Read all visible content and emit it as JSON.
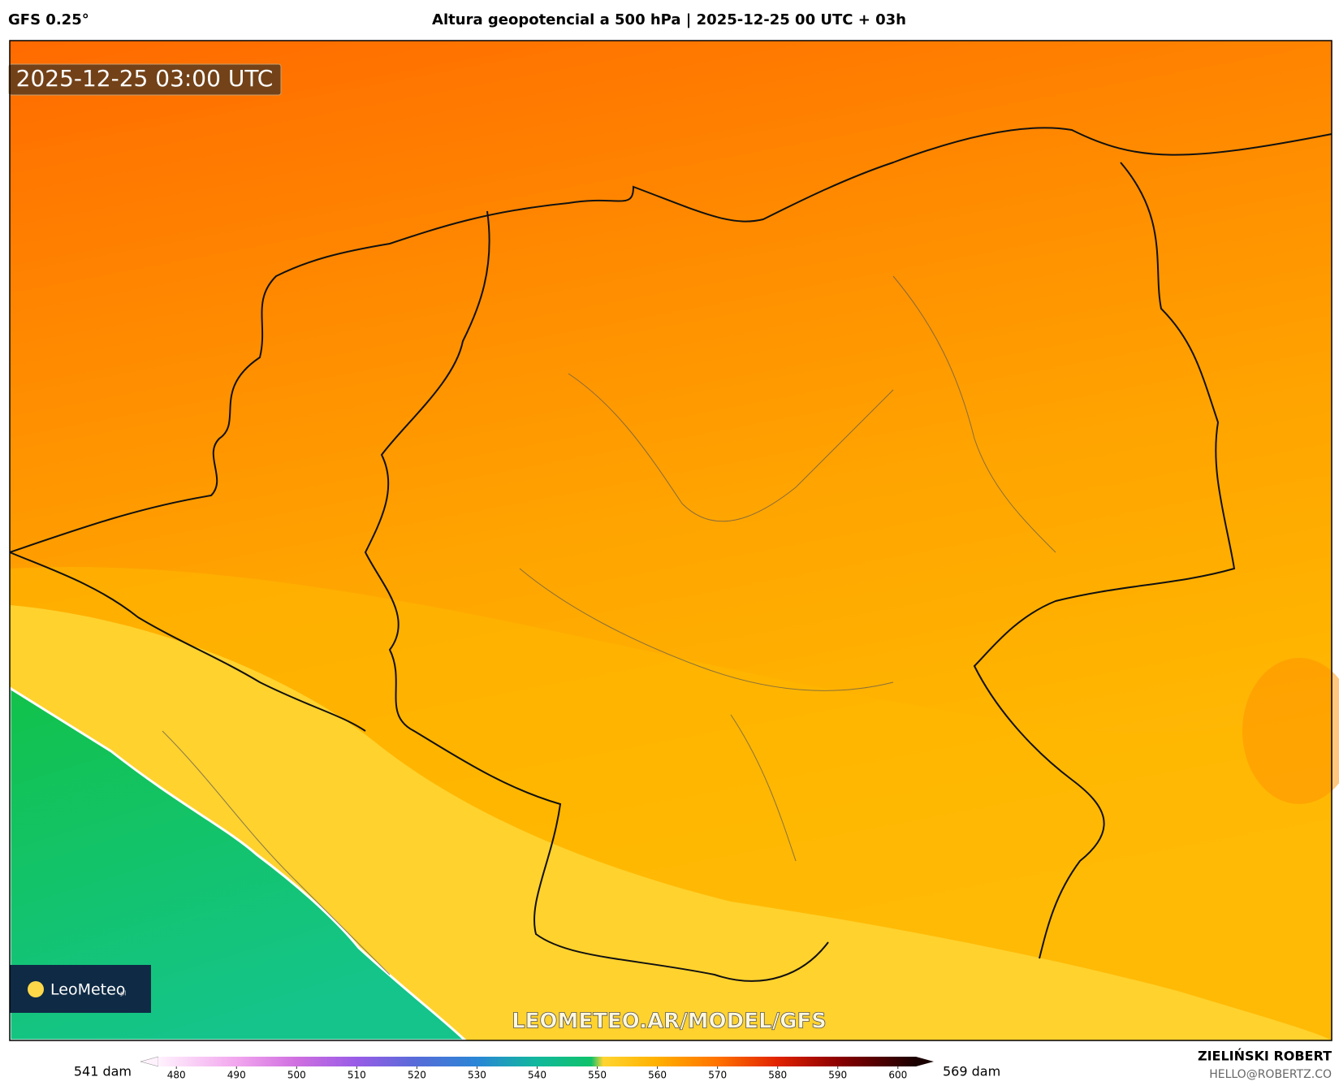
{
  "header": {
    "model": "GFS 0.25°",
    "title": "Altura geopotencial a 500 hPa | 2025-12-25 00 UTC + 03h"
  },
  "map": {
    "timestamp": "2025-12-25 03:00 UTC",
    "logo": "LeoMeteo",
    "logo_suffix": "pl",
    "watermark": "LEOMETEO.AR/MODEL/GFS"
  },
  "colorbar": {
    "min_label": "541 dam",
    "max_label": "569 dam",
    "range": [
      477,
      603
    ],
    "ticks": [
      480,
      490,
      500,
      510,
      520,
      530,
      540,
      550,
      560,
      570,
      580,
      590,
      600
    ],
    "stops": [
      {
        "value": 477,
        "color": "#fff2fd"
      },
      {
        "value": 490,
        "color": "#f2a6ee"
      },
      {
        "value": 500,
        "color": "#cf6fe0"
      },
      {
        "value": 510,
        "color": "#985ce6"
      },
      {
        "value": 520,
        "color": "#566cd8"
      },
      {
        "value": 530,
        "color": "#2a86d6"
      },
      {
        "value": 540,
        "color": "#12b89c"
      },
      {
        "value": 549,
        "color": "#10c26a"
      },
      {
        "value": 551,
        "color": "#ffd531"
      },
      {
        "value": 560,
        "color": "#ffb000"
      },
      {
        "value": 570,
        "color": "#ff7200"
      },
      {
        "value": 580,
        "color": "#e02200"
      },
      {
        "value": 590,
        "color": "#8c0000"
      },
      {
        "value": 603,
        "color": "#1a0000"
      }
    ]
  },
  "footer": {
    "author": "ZIELIŃSKI ROBERT",
    "email": "HELLO@ROBERTZ.CO"
  }
}
